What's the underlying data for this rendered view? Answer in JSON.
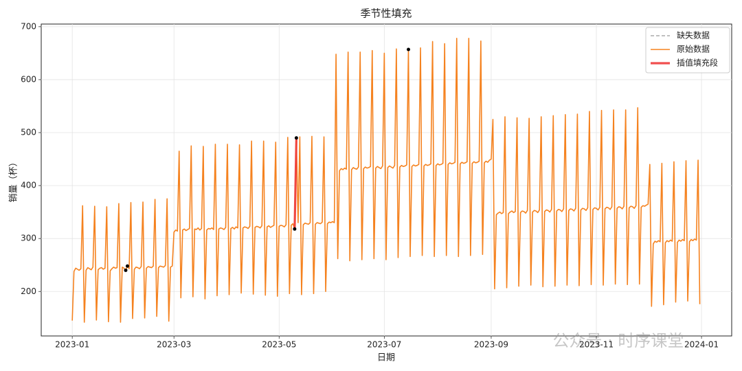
{
  "chart_data": {
    "type": "line",
    "title": "季节性填充",
    "x_label": "日期",
    "y_label": "销量（杯）",
    "watermark": "公众号 · 时序课堂",
    "xlim": [
      -18,
      382.5
    ],
    "ylim": [
      116,
      705
    ],
    "xticks": [
      {
        "value": 0,
        "label": "2023-01"
      },
      {
        "value": 59,
        "label": "2023-03"
      },
      {
        "value": 120,
        "label": "2023-05"
      },
      {
        "value": 181,
        "label": "2023-07"
      },
      {
        "value": 243,
        "label": "2023-09"
      },
      {
        "value": 304,
        "label": "2023-11"
      },
      {
        "value": 365,
        "label": "2024-01"
      }
    ],
    "yticks": [
      200,
      300,
      400,
      500,
      600,
      700
    ],
    "grid": true,
    "legend": "upper right",
    "series": [
      {
        "name": "缺失数据",
        "color": "#999999",
        "linestyle": "dashed",
        "marker": "#000000",
        "x": [
          31,
          32,
          129,
          130,
          195
        ],
        "values": [
          240,
          248,
          318,
          490,
          657
        ]
      },
      {
        "name": "原始数据",
        "color": "#f5821f",
        "linestyle": "solid",
        "values": [
          145,
          238,
          244,
          242,
          240,
          243,
          362,
          142,
          240,
          245,
          243,
          241,
          246,
          361,
          146,
          241,
          244,
          245,
          242,
          244,
          360,
          143,
          239,
          243,
          246,
          244,
          245,
          366,
          142,
          246,
          244,
          240,
          248,
          243,
          368,
          149,
          242,
          246,
          245,
          243,
          247,
          369,
          150,
          244,
          247,
          246,
          245,
          248,
          374,
          153,
          245,
          248,
          247,
          246,
          249,
          375,
          144,
          246,
          248,
          312,
          316,
          314,
          465,
          188,
          316,
          318,
          315,
          317,
          319,
          475,
          190,
          318,
          317,
          320,
          316,
          319,
          474,
          186,
          316,
          319,
          318,
          320,
          317,
          478,
          192,
          318,
          320,
          319,
          317,
          321,
          478,
          194,
          319,
          321,
          318,
          322,
          320,
          477,
          197,
          320,
          322,
          321,
          319,
          323,
          484,
          195,
          321,
          323,
          322,
          320,
          324,
          484,
          193,
          322,
          324,
          321,
          323,
          325,
          482,
          191,
          323,
          325,
          324,
          322,
          326,
          491,
          196,
          325,
          328,
          318,
          490,
          330,
          492,
          194,
          326,
          329,
          328,
          327,
          330,
          493,
          196,
          327,
          330,
          329,
          328,
          331,
          492,
          200,
          328,
          331,
          330,
          332,
          330,
          648,
          262,
          428,
          432,
          430,
          433,
          431,
          652,
          258,
          430,
          434,
          432,
          431,
          435,
          652,
          260,
          432,
          435,
          433,
          434,
          436,
          655,
          262,
          433,
          436,
          434,
          432,
          437,
          650,
          260,
          434,
          437,
          435,
          433,
          438,
          658,
          264,
          435,
          438,
          436,
          437,
          439,
          657,
          266,
          436,
          439,
          437,
          438,
          440,
          660,
          268,
          437,
          440,
          438,
          439,
          441,
          672,
          266,
          438,
          441,
          439,
          440,
          442,
          668,
          268,
          440,
          443,
          441,
          442,
          444,
          678,
          266,
          441,
          444,
          442,
          443,
          445,
          678,
          268,
          442,
          445,
          443,
          444,
          446,
          673,
          270,
          443,
          446,
          444,
          448,
          450,
          525,
          205,
          345,
          348,
          350,
          347,
          349,
          530,
          207,
          347,
          350,
          352,
          349,
          351,
          528,
          210,
          349,
          352,
          351,
          348,
          353,
          527,
          212,
          350,
          353,
          352,
          349,
          354,
          530,
          209,
          351,
          354,
          353,
          350,
          355,
          532,
          210,
          352,
          355,
          354,
          351,
          356,
          534,
          212,
          353,
          356,
          355,
          352,
          357,
          535,
          211,
          354,
          357,
          356,
          353,
          358,
          540,
          213,
          355,
          358,
          357,
          354,
          359,
          542,
          212,
          356,
          359,
          358,
          355,
          360,
          543,
          214,
          357,
          360,
          359,
          356,
          361,
          543,
          213,
          358,
          361,
          360,
          357,
          362,
          547,
          214,
          359,
          362,
          361,
          363,
          365,
          440,
          172,
          290,
          295,
          293,
          296,
          294,
          442,
          175,
          292,
          296,
          294,
          297,
          295,
          445,
          180,
          293,
          297,
          295,
          298,
          296,
          447,
          182,
          294,
          298,
          296,
          299,
          297,
          448,
          176
        ]
      },
      {
        "name": "插值填充段",
        "color": "#f03c3c",
        "linestyle": "thick",
        "x": [
          129,
          130
        ],
        "values": [
          318,
          490
        ]
      }
    ]
  }
}
